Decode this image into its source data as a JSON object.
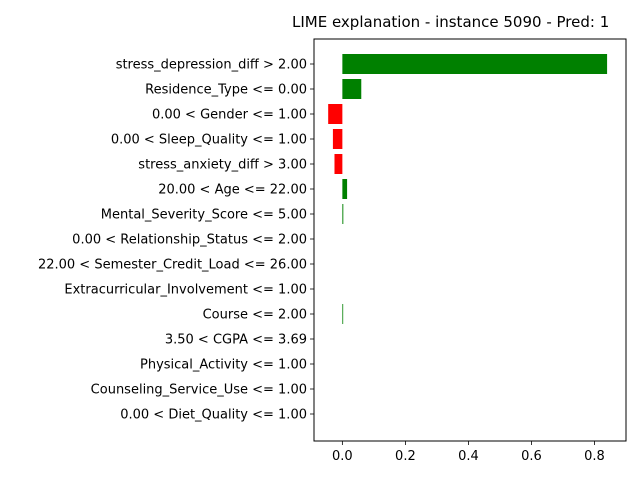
{
  "chart_data": {
    "type": "bar",
    "orientation": "horizontal",
    "title": "LIME explanation - instance 5090 - Pred: 1",
    "xlabel": "",
    "ylabel": "",
    "xlim": [
      -0.09,
      0.9
    ],
    "xticks": [
      0.0,
      0.2,
      0.4,
      0.6,
      0.8
    ],
    "xtick_labels": [
      "0.0",
      "0.2",
      "0.4",
      "0.6",
      "0.8"
    ],
    "grid": false,
    "legend": "none",
    "colors": {
      "positive": "#008000",
      "negative": "#ff0000"
    },
    "categories": [
      "stress_depression_diff > 2.00",
      "Residence_Type <= 0.00",
      "0.00 < Gender <= 1.00",
      "0.00 < Sleep_Quality <= 1.00",
      "stress_anxiety_diff > 3.00",
      "20.00 < Age <= 22.00",
      "Mental_Severity_Score <= 5.00",
      "0.00 < Relationship_Status <= 2.00",
      "22.00 < Semester_Credit_Load <= 26.00",
      "Extracurricular_Involvement <= 1.00",
      "Course <= 2.00",
      "3.50 < CGPA <= 3.69",
      "Physical_Activity <= 1.00",
      "Counseling_Service_Use <= 1.00",
      "0.00 < Diet_Quality <= 1.00"
    ],
    "values": [
      0.84,
      0.06,
      -0.045,
      -0.03,
      -0.025,
      0.015,
      0.003,
      0.0,
      0.0,
      0.0,
      0.002,
      0.0,
      0.0,
      0.0,
      0.0
    ]
  }
}
